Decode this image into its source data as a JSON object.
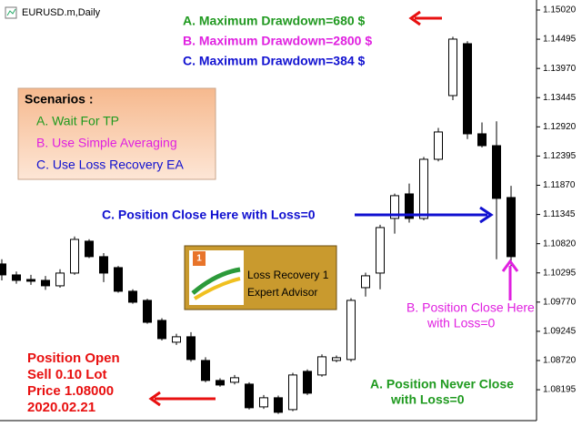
{
  "chart_data": {
    "type": "candlestick",
    "title": "EURUSD.m,Daily",
    "ylim": [
      1.0764,
      1.152
    ],
    "yticks": [
      {
        "value": 1.1502,
        "label": "1.15020"
      },
      {
        "value": 1.14495,
        "label": "1.14495"
      },
      {
        "value": 1.1397,
        "label": "1.13970"
      },
      {
        "value": 1.13445,
        "label": "1.13445"
      },
      {
        "value": 1.1292,
        "label": "1.12920"
      },
      {
        "value": 1.12395,
        "label": "1.12395"
      },
      {
        "value": 1.1187,
        "label": "1.11870"
      },
      {
        "value": 1.11345,
        "label": "1.11345"
      },
      {
        "value": 1.1082,
        "label": "1.10820"
      },
      {
        "value": 1.10295,
        "label": "1.10295"
      },
      {
        "value": 1.0977,
        "label": "1.09770"
      },
      {
        "value": 1.09245,
        "label": "1.09245"
      },
      {
        "value": 1.0872,
        "label": "1.08720"
      },
      {
        "value": 1.08195,
        "label": "1.08195"
      }
    ],
    "up_color": "#ffffff",
    "down_color": "#000000",
    "edge_color": "#000000",
    "open": [
      1.10456,
      1.10259,
      1.10177,
      1.10161,
      1.10063,
      1.10292,
      1.10865,
      1.10587,
      1.1039,
      1.09965,
      1.09801,
      1.09441,
      1.09049,
      1.09147,
      1.08721,
      1.08362,
      1.08329,
      1.08296,
      1.07887,
      1.08051,
      1.07838,
      1.08525,
      1.0846,
      1.08721,
      1.08738,
      1.1003,
      1.10292,
      1.11274,
      1.11715,
      1.11274,
      1.12337,
      1.13482,
      1.14415,
      1.12795,
      1.12582,
      1.1165
    ],
    "high": [
      1.1054,
      1.1032,
      1.1026,
      1.1024,
      1.1036,
      1.1095,
      1.109,
      1.1065,
      1.1042,
      1.1,
      1.0983,
      1.0948,
      1.092,
      1.0923,
      1.0878,
      1.084,
      1.0846,
      1.0833,
      1.081,
      1.0809,
      1.085,
      1.0856,
      1.0883,
      1.0881,
      1.0984,
      1.103,
      1.1116,
      1.1172,
      1.119,
      1.1238,
      1.129,
      1.1454,
      1.1446,
      1.13,
      1.1302,
      1.1186
    ],
    "low": [
      1.1016,
      1.101,
      1.1008,
      1.0999,
      1.1003,
      1.1026,
      1.1056,
      1.1013,
      1.0994,
      1.0974,
      1.0938,
      1.0908,
      1.09,
      1.087,
      1.0833,
      1.0825,
      1.0829,
      1.0784,
      1.0785,
      1.0776,
      1.0781,
      1.081,
      1.0843,
      1.0869,
      1.087,
      1.0987,
      1.1,
      1.11,
      1.112,
      1.1124,
      1.123,
      1.134,
      1.127,
      1.1255,
      1.1054,
      1.104
    ],
    "close": [
      1.10259,
      1.10161,
      1.10145,
      1.10063,
      1.10292,
      1.10897,
      1.10587,
      1.10292,
      1.09965,
      1.09768,
      1.09407,
      1.09114,
      1.09147,
      1.08738,
      1.08362,
      1.0828,
      1.08411,
      1.07871,
      1.08051,
      1.07789,
      1.0846,
      1.08133,
      1.08787,
      1.08771,
      1.09801,
      1.10243,
      1.1111,
      1.11683,
      1.11274,
      1.12337,
      1.12828,
      1.14497,
      1.12795,
      1.12582,
      1.11634,
      1.10587
    ],
    "annotations": [
      {
        "lines": [
          "A. Maximum Drawdown=680 $"
        ],
        "color": "#1f9a1f"
      },
      {
        "lines": [
          "B. Maximum Drawdown=2800 $"
        ],
        "color": "#e020e0"
      },
      {
        "lines": [
          "C. Maximum Drawdown=384 $"
        ],
        "color": "#1010d0"
      },
      {
        "lines": [
          "Scenarios :"
        ],
        "color": "#000000"
      },
      {
        "lines": [
          "A. Wait For TP"
        ],
        "color": "#1f9a1f"
      },
      {
        "lines": [
          "B. Use Simple Averaging"
        ],
        "color": "#e020e0"
      },
      {
        "lines": [
          "C. Use Loss Recovery EA"
        ],
        "color": "#1010d0"
      },
      {
        "lines": [
          "C. Position Close Here with Loss=0"
        ],
        "color": "#1010d0"
      },
      {
        "lines": [
          "Loss Recovery 1",
          "Expert Advisor"
        ],
        "color": "#000000"
      },
      {
        "lines": [
          "B. Position Close Here",
          "with Loss=0"
        ],
        "color": "#e020e0"
      },
      {
        "lines": [
          "Position Open",
          "Sell 0.10 Lot",
          "Price 1.08000",
          "2020.02.21"
        ],
        "color": "#e81010"
      },
      {
        "lines": [
          "A. Position Never Close",
          "with Loss=0"
        ],
        "color": "#1f9a1f"
      }
    ]
  }
}
